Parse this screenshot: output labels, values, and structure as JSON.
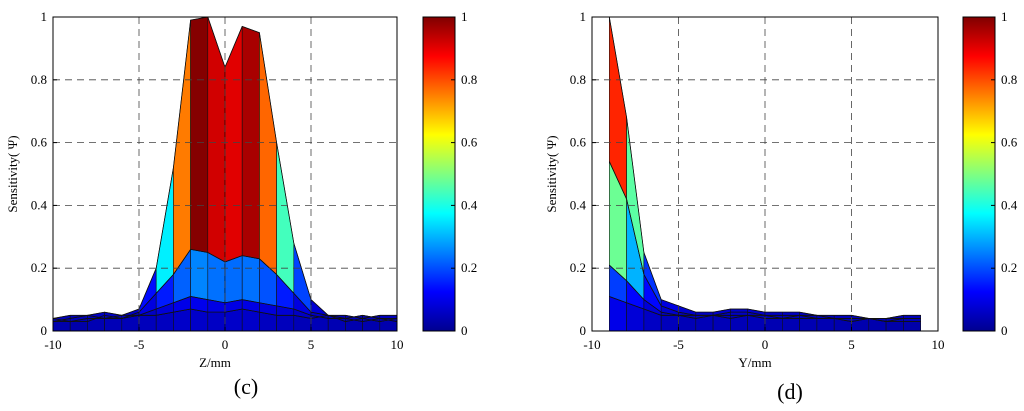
{
  "colors": {
    "colormap": "jet",
    "stops": [
      "#00008f",
      "#0000ff",
      "#0080ff",
      "#00ffff",
      "#80ff80",
      "#ffff00",
      "#ff8000",
      "#ff0000",
      "#800000"
    ]
  },
  "chart_data": [
    {
      "type": "area",
      "panel_label": "(c)",
      "xlabel": "Z/mm",
      "ylabel": "Sensitivity( Ψ)",
      "xlim": [
        -10,
        10
      ],
      "ylim": [
        0,
        1
      ],
      "xticks": [
        "-10",
        "-5",
        "0",
        "5",
        "10"
      ],
      "yticks": [
        "0",
        "0.2",
        "0.4",
        "0.6",
        "0.8",
        "1"
      ],
      "colorbar_ticks": [
        "0",
        "0.2",
        "0.4",
        "0.6",
        "0.8",
        "1"
      ],
      "grid": true,
      "x": [
        -10,
        -9,
        -8,
        -7,
        -6,
        -5,
        -4,
        -3,
        -2,
        -1,
        0,
        1,
        2,
        3,
        4,
        5,
        6,
        7,
        8,
        9,
        10
      ],
      "series": [
        {
          "values": [
            0.04,
            0.05,
            0.05,
            0.06,
            0.05,
            0.07,
            0.2,
            0.52,
            0.99,
            1.0,
            0.84,
            0.97,
            0.95,
            0.6,
            0.28,
            0.1,
            0.05,
            0.05,
            0.04,
            0.05,
            0.05
          ]
        },
        {
          "values": [
            0.03,
            0.04,
            0.05,
            0.04,
            0.04,
            0.06,
            0.12,
            0.18,
            0.26,
            0.25,
            0.22,
            0.24,
            0.23,
            0.18,
            0.12,
            0.06,
            0.05,
            0.04,
            0.05,
            0.04,
            0.04
          ]
        },
        {
          "values": [
            0.03,
            0.03,
            0.04,
            0.04,
            0.05,
            0.05,
            0.07,
            0.09,
            0.11,
            0.1,
            0.09,
            0.1,
            0.09,
            0.08,
            0.07,
            0.05,
            0.04,
            0.04,
            0.03,
            0.04,
            0.03
          ]
        },
        {
          "values": [
            0.04,
            0.03,
            0.03,
            0.05,
            0.04,
            0.05,
            0.05,
            0.06,
            0.07,
            0.06,
            0.06,
            0.07,
            0.06,
            0.05,
            0.05,
            0.04,
            0.05,
            0.03,
            0.04,
            0.03,
            0.04
          ]
        }
      ]
    },
    {
      "type": "area",
      "panel_label": "(d)",
      "xlabel": "Y/mm",
      "ylabel": "Sensitivity( Ψ)",
      "xlim": [
        -10,
        10
      ],
      "ylim": [
        0,
        1
      ],
      "xticks": [
        "-10",
        "-5",
        "0",
        "5",
        "10"
      ],
      "yticks": [
        "0",
        "0.2",
        "0.4",
        "0.6",
        "0.8",
        "1"
      ],
      "colorbar_ticks": [
        "0",
        "0.2",
        "0.4",
        "0.6",
        "0.8",
        "1"
      ],
      "grid": true,
      "x": [
        -9,
        -8,
        -7,
        -6,
        -5,
        -4,
        -3,
        -2,
        -1,
        0,
        1,
        2,
        3,
        4,
        5,
        6,
        7,
        8,
        9
      ],
      "series": [
        {
          "values": [
            1.0,
            0.68,
            0.25,
            0.1,
            0.08,
            0.06,
            0.06,
            0.07,
            0.07,
            0.06,
            0.06,
            0.06,
            0.05,
            0.05,
            0.05,
            0.04,
            0.04,
            0.05,
            0.05
          ]
        },
        {
          "values": [
            0.54,
            0.42,
            0.18,
            0.08,
            0.06,
            0.05,
            0.05,
            0.06,
            0.06,
            0.05,
            0.05,
            0.05,
            0.05,
            0.04,
            0.04,
            0.04,
            0.04,
            0.04,
            0.04
          ]
        },
        {
          "values": [
            0.21,
            0.16,
            0.1,
            0.06,
            0.05,
            0.05,
            0.05,
            0.05,
            0.05,
            0.05,
            0.04,
            0.05,
            0.04,
            0.04,
            0.04,
            0.04,
            0.03,
            0.04,
            0.04
          ]
        },
        {
          "values": [
            0.11,
            0.09,
            0.07,
            0.05,
            0.05,
            0.04,
            0.05,
            0.04,
            0.05,
            0.04,
            0.04,
            0.04,
            0.04,
            0.04,
            0.03,
            0.04,
            0.03,
            0.03,
            0.03
          ]
        }
      ]
    }
  ]
}
